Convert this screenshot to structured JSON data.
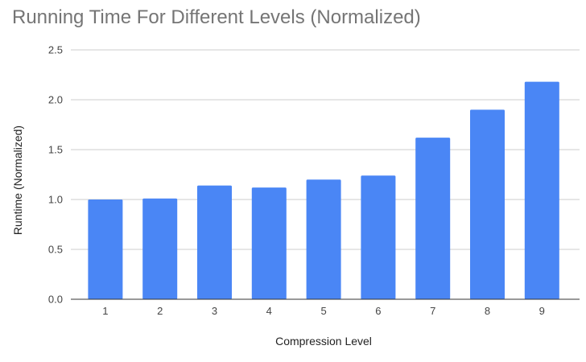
{
  "chart_data": {
    "type": "bar",
    "title": "Running Time For Different Levels (Normalized)",
    "xlabel": "Compression Level",
    "ylabel": "Runtime (Normalized)",
    "categories": [
      "1",
      "2",
      "3",
      "4",
      "5",
      "6",
      "7",
      "8",
      "9"
    ],
    "values": [
      1.0,
      1.01,
      1.14,
      1.12,
      1.2,
      1.24,
      1.62,
      1.9,
      2.18
    ],
    "ylim": [
      0,
      2.5
    ],
    "yticks": [
      "0.0",
      "0.5",
      "1.0",
      "1.5",
      "2.0",
      "2.5"
    ],
    "grid": true,
    "legend": "none",
    "colors": {
      "bar": "#4a86f5",
      "grid": "#cccccc",
      "axis": "#333333",
      "title": "#757575"
    }
  }
}
